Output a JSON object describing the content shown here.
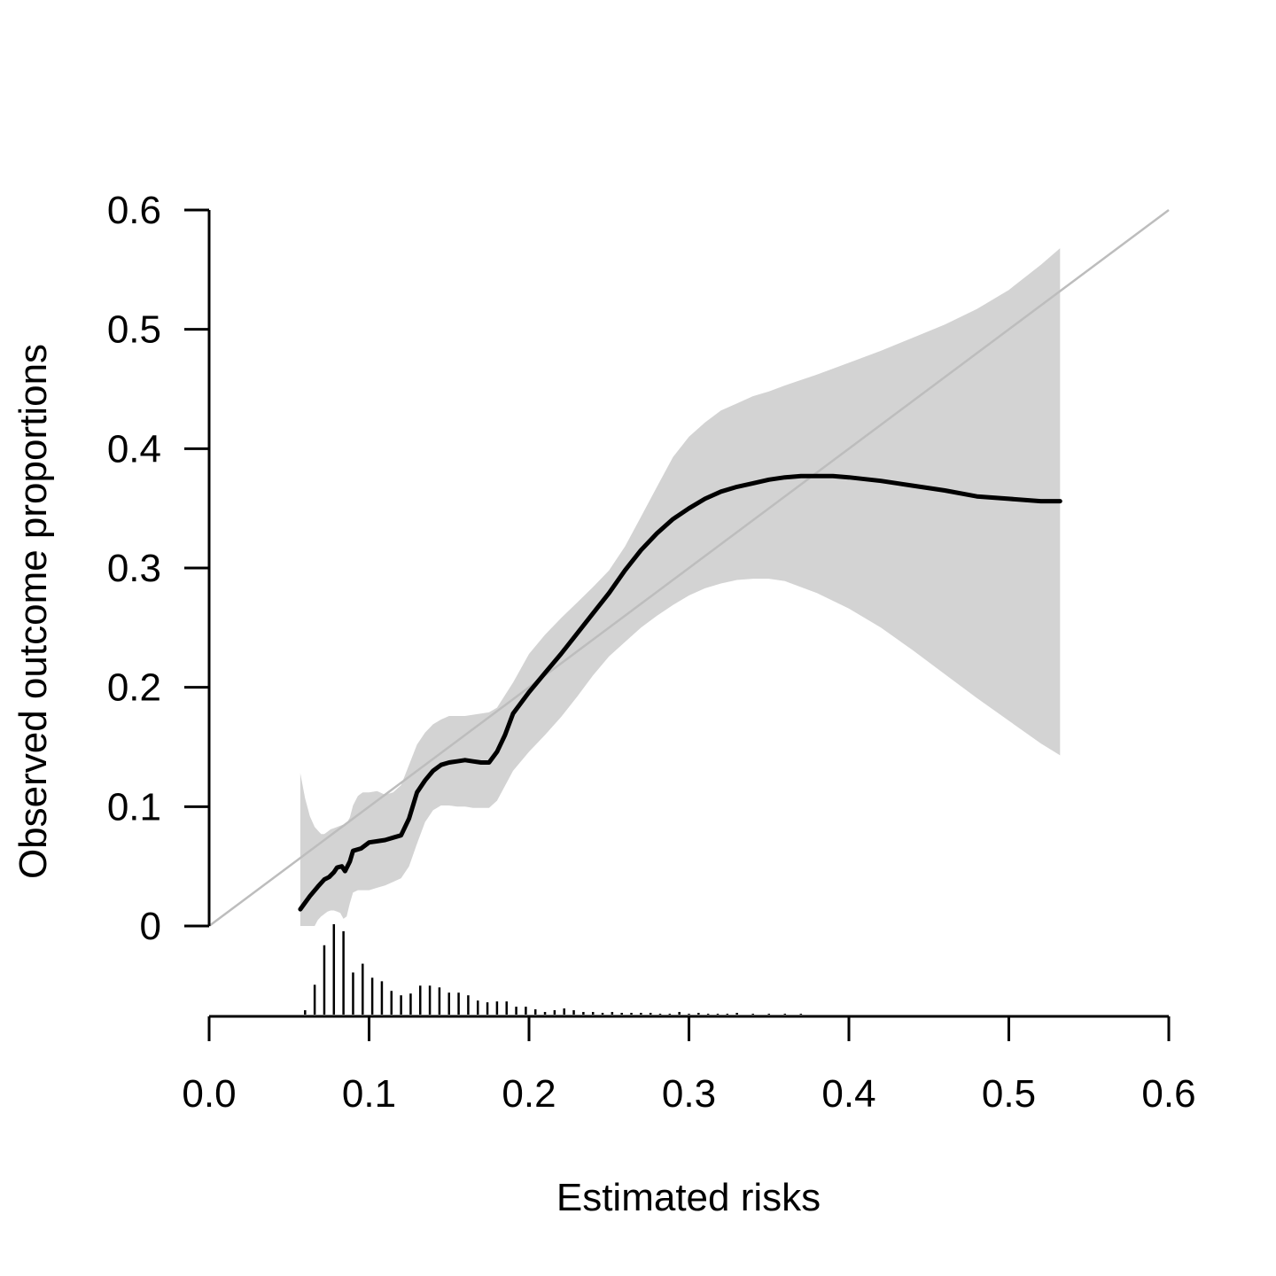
{
  "chart_data": {
    "type": "line",
    "xlabel": "Estimated risks",
    "ylabel": "Observed outcome proportions",
    "xlim": [
      0,
      0.6
    ],
    "ylim": [
      0,
      0.6
    ],
    "x_ticks": [
      "0.0",
      "0.1",
      "0.2",
      "0.3",
      "0.4",
      "0.5",
      "0.6"
    ],
    "x_tick_values": [
      0,
      0.1,
      0.2,
      0.3,
      0.4,
      0.5,
      0.6
    ],
    "y_ticks": [
      "0",
      "0.1",
      "0.2",
      "0.3",
      "0.4",
      "0.5",
      "0.6"
    ],
    "y_tick_values": [
      0,
      0.1,
      0.2,
      0.3,
      0.4,
      0.5,
      0.6
    ],
    "grid": false,
    "reference_line": {
      "x": [
        0,
        0.6
      ],
      "y": [
        0,
        0.6
      ],
      "color": "#bdbdbd"
    },
    "calibration_curve": {
      "color": "#000000",
      "x": [
        0.057,
        0.063,
        0.068,
        0.072,
        0.075,
        0.078,
        0.08,
        0.083,
        0.085,
        0.088,
        0.09,
        0.095,
        0.1,
        0.105,
        0.11,
        0.115,
        0.12,
        0.125,
        0.13,
        0.135,
        0.14,
        0.145,
        0.15,
        0.155,
        0.16,
        0.165,
        0.17,
        0.175,
        0.18,
        0.185,
        0.19,
        0.2,
        0.21,
        0.22,
        0.23,
        0.24,
        0.25,
        0.26,
        0.27,
        0.28,
        0.29,
        0.3,
        0.31,
        0.32,
        0.33,
        0.34,
        0.35,
        0.36,
        0.37,
        0.38,
        0.39,
        0.4,
        0.42,
        0.44,
        0.46,
        0.48,
        0.5,
        0.52,
        0.532
      ],
      "y": [
        0.014,
        0.025,
        0.033,
        0.039,
        0.041,
        0.045,
        0.049,
        0.05,
        0.046,
        0.054,
        0.063,
        0.065,
        0.07,
        0.071,
        0.072,
        0.074,
        0.076,
        0.09,
        0.112,
        0.122,
        0.13,
        0.135,
        0.137,
        0.138,
        0.139,
        0.138,
        0.137,
        0.137,
        0.146,
        0.16,
        0.178,
        0.196,
        0.212,
        0.228,
        0.245,
        0.262,
        0.279,
        0.298,
        0.315,
        0.329,
        0.341,
        0.35,
        0.358,
        0.364,
        0.368,
        0.371,
        0.374,
        0.376,
        0.377,
        0.377,
        0.377,
        0.376,
        0.373,
        0.369,
        0.365,
        0.36,
        0.358,
        0.356,
        0.356
      ]
    },
    "confidence_band": {
      "color": "#d3d3d3",
      "x": [
        0.057,
        0.06,
        0.063,
        0.066,
        0.068,
        0.07,
        0.072,
        0.074,
        0.076,
        0.078,
        0.08,
        0.082,
        0.084,
        0.086,
        0.088,
        0.09,
        0.093,
        0.096,
        0.1,
        0.105,
        0.11,
        0.115,
        0.12,
        0.125,
        0.13,
        0.135,
        0.14,
        0.145,
        0.15,
        0.155,
        0.16,
        0.165,
        0.17,
        0.175,
        0.18,
        0.19,
        0.2,
        0.21,
        0.22,
        0.23,
        0.24,
        0.25,
        0.26,
        0.27,
        0.28,
        0.29,
        0.3,
        0.31,
        0.32,
        0.33,
        0.34,
        0.35,
        0.36,
        0.38,
        0.4,
        0.42,
        0.44,
        0.46,
        0.48,
        0.5,
        0.52,
        0.532
      ],
      "upper": [
        0.128,
        0.107,
        0.092,
        0.083,
        0.08,
        0.077,
        0.077,
        0.079,
        0.081,
        0.082,
        0.083,
        0.084,
        0.085,
        0.086,
        0.091,
        0.101,
        0.109,
        0.112,
        0.112,
        0.113,
        0.11,
        0.112,
        0.118,
        0.135,
        0.152,
        0.162,
        0.169,
        0.173,
        0.176,
        0.176,
        0.176,
        0.177,
        0.178,
        0.179,
        0.183,
        0.204,
        0.228,
        0.244,
        0.258,
        0.271,
        0.284,
        0.298,
        0.318,
        0.343,
        0.368,
        0.393,
        0.41,
        0.422,
        0.432,
        0.438,
        0.444,
        0.448,
        0.453,
        0.462,
        0.472,
        0.482,
        0.493,
        0.504,
        0.517,
        0.533,
        0.554,
        0.568
      ],
      "lower": [
        0.0,
        0.0,
        0.0,
        0.0,
        0.005,
        0.008,
        0.01,
        0.012,
        0.013,
        0.013,
        0.012,
        0.011,
        0.006,
        0.008,
        0.019,
        0.028,
        0.03,
        0.03,
        0.03,
        0.032,
        0.034,
        0.037,
        0.04,
        0.05,
        0.069,
        0.087,
        0.097,
        0.101,
        0.101,
        0.1,
        0.1,
        0.099,
        0.099,
        0.099,
        0.105,
        0.13,
        0.146,
        0.16,
        0.175,
        0.192,
        0.21,
        0.226,
        0.238,
        0.25,
        0.26,
        0.269,
        0.277,
        0.283,
        0.287,
        0.29,
        0.291,
        0.291,
        0.289,
        0.279,
        0.266,
        0.25,
        0.231,
        0.211,
        0.191,
        0.172,
        0.153,
        0.143
      ]
    },
    "risk_distribution": {
      "x": [
        0.06,
        0.066,
        0.072,
        0.078,
        0.084,
        0.09,
        0.096,
        0.102,
        0.108,
        0.114,
        0.12,
        0.126,
        0.132,
        0.138,
        0.144,
        0.15,
        0.156,
        0.162,
        0.168,
        0.174,
        0.18,
        0.186,
        0.192,
        0.198,
        0.204,
        0.21,
        0.216,
        0.222,
        0.228,
        0.234,
        0.24,
        0.246,
        0.252,
        0.258,
        0.264,
        0.27,
        0.276,
        0.282,
        0.288,
        0.294,
        0.3,
        0.306,
        0.312,
        0.318,
        0.324,
        0.33,
        0.34,
        0.35,
        0.36,
        0.37
      ],
      "counts": [
        5,
        34,
        79,
        103,
        95,
        48,
        58,
        42,
        38,
        27,
        22,
        24,
        33,
        33,
        31,
        25,
        25,
        22,
        16,
        14,
        15,
        15,
        9,
        9,
        6,
        3,
        5,
        7,
        5,
        3,
        3,
        2,
        3,
        2,
        2,
        2,
        2,
        1,
        1,
        3,
        1,
        2,
        1,
        1,
        1,
        2,
        1,
        1,
        1,
        1
      ]
    }
  }
}
